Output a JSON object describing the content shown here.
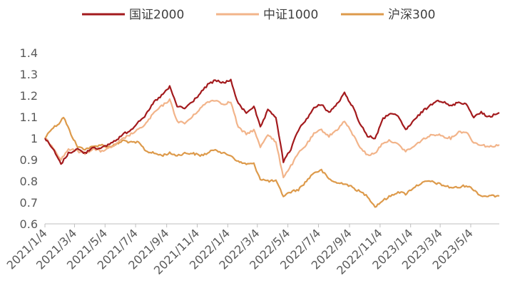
{
  "chart_data": {
    "type": "line",
    "title": "",
    "xlabel": "",
    "ylabel": "",
    "ylim": [
      0.6,
      1.4
    ],
    "yticks": [
      0.6,
      0.7,
      0.8,
      0.9,
      1.0,
      1.1,
      1.2,
      1.3,
      1.4
    ],
    "ytick_labels": [
      "0.6",
      "0.7",
      "0.8",
      "0.9",
      "1",
      "1.1",
      "1.2",
      "1.3",
      "1.4"
    ],
    "xtick_labels": [
      "2021/1/4",
      "2021/3/4",
      "2021/5/4",
      "2021/7/4",
      "2021/9/4",
      "2021/11/4",
      "2022/1/4",
      "2022/3/4",
      "2022/5/4",
      "2022/7/4",
      "2022/9/4",
      "2022/11/4",
      "2023/1/4",
      "2023/3/4",
      "2023/5/4"
    ],
    "x_range": [
      "2021-01-04",
      "2023-06-30"
    ],
    "grid": false,
    "legend_position": "top",
    "series": [
      {
        "name": "国证2000",
        "color": "#a31a1d",
        "points": [
          [
            "2021-01-04",
            1.0
          ],
          [
            "2021-01-20",
            0.95
          ],
          [
            "2021-02-05",
            0.88
          ],
          [
            "2021-02-20",
            0.93
          ],
          [
            "2021-03-10",
            0.95
          ],
          [
            "2021-03-25",
            0.93
          ],
          [
            "2021-04-10",
            0.96
          ],
          [
            "2021-04-25",
            0.95
          ],
          [
            "2021-05-10",
            0.97
          ],
          [
            "2021-05-25",
            0.99
          ],
          [
            "2021-06-10",
            1.02
          ],
          [
            "2021-06-25",
            1.04
          ],
          [
            "2021-07-10",
            1.08
          ],
          [
            "2021-07-25",
            1.11
          ],
          [
            "2021-08-10",
            1.17
          ],
          [
            "2021-08-25",
            1.2
          ],
          [
            "2021-09-10",
            1.24
          ],
          [
            "2021-09-25",
            1.15
          ],
          [
            "2021-10-10",
            1.14
          ],
          [
            "2021-10-25",
            1.17
          ],
          [
            "2021-11-10",
            1.21
          ],
          [
            "2021-11-25",
            1.25
          ],
          [
            "2021-12-10",
            1.27
          ],
          [
            "2021-12-25",
            1.26
          ],
          [
            "2022-01-10",
            1.27
          ],
          [
            "2022-01-25",
            1.16
          ],
          [
            "2022-02-10",
            1.12
          ],
          [
            "2022-02-25",
            1.15
          ],
          [
            "2022-03-10",
            1.05
          ],
          [
            "2022-03-25",
            1.13
          ],
          [
            "2022-04-10",
            1.1
          ],
          [
            "2022-04-25",
            0.89
          ],
          [
            "2022-05-10",
            0.95
          ],
          [
            "2022-05-25",
            1.04
          ],
          [
            "2022-06-10",
            1.09
          ],
          [
            "2022-06-25",
            1.14
          ],
          [
            "2022-07-10",
            1.16
          ],
          [
            "2022-07-25",
            1.12
          ],
          [
            "2022-08-10",
            1.16
          ],
          [
            "2022-08-25",
            1.21
          ],
          [
            "2022-09-10",
            1.15
          ],
          [
            "2022-09-25",
            1.07
          ],
          [
            "2022-10-10",
            1.01
          ],
          [
            "2022-10-25",
            1.0
          ],
          [
            "2022-11-10",
            1.09
          ],
          [
            "2022-11-25",
            1.12
          ],
          [
            "2022-12-10",
            1.1
          ],
          [
            "2022-12-25",
            1.04
          ],
          [
            "2023-01-10",
            1.08
          ],
          [
            "2023-01-25",
            1.12
          ],
          [
            "2023-02-10",
            1.15
          ],
          [
            "2023-02-25",
            1.18
          ],
          [
            "2023-03-10",
            1.17
          ],
          [
            "2023-03-25",
            1.15
          ],
          [
            "2023-04-10",
            1.17
          ],
          [
            "2023-04-25",
            1.16
          ],
          [
            "2023-05-10",
            1.1
          ],
          [
            "2023-05-25",
            1.12
          ],
          [
            "2023-06-10",
            1.1
          ],
          [
            "2023-06-30",
            1.12
          ]
        ]
      },
      {
        "name": "中证1000",
        "color": "#f2b48a",
        "points": [
          [
            "2021-01-04",
            1.0
          ],
          [
            "2021-01-20",
            0.96
          ],
          [
            "2021-02-05",
            0.9
          ],
          [
            "2021-02-20",
            0.95
          ],
          [
            "2021-03-10",
            0.94
          ],
          [
            "2021-03-25",
            0.93
          ],
          [
            "2021-04-10",
            0.95
          ],
          [
            "2021-04-25",
            0.94
          ],
          [
            "2021-05-10",
            0.95
          ],
          [
            "2021-05-25",
            0.97
          ],
          [
            "2021-06-10",
            1.0
          ],
          [
            "2021-06-25",
            1.02
          ],
          [
            "2021-07-10",
            1.04
          ],
          [
            "2021-07-25",
            1.07
          ],
          [
            "2021-08-10",
            1.12
          ],
          [
            "2021-08-25",
            1.15
          ],
          [
            "2021-09-10",
            1.18
          ],
          [
            "2021-09-25",
            1.08
          ],
          [
            "2021-10-10",
            1.07
          ],
          [
            "2021-10-25",
            1.1
          ],
          [
            "2021-11-10",
            1.14
          ],
          [
            "2021-11-25",
            1.17
          ],
          [
            "2021-12-10",
            1.18
          ],
          [
            "2021-12-25",
            1.16
          ],
          [
            "2022-01-10",
            1.17
          ],
          [
            "2022-01-25",
            1.05
          ],
          [
            "2022-02-10",
            1.02
          ],
          [
            "2022-02-25",
            1.04
          ],
          [
            "2022-03-10",
            0.96
          ],
          [
            "2022-03-25",
            1.02
          ],
          [
            "2022-04-10",
            0.98
          ],
          [
            "2022-04-25",
            0.82
          ],
          [
            "2022-05-10",
            0.87
          ],
          [
            "2022-05-25",
            0.93
          ],
          [
            "2022-06-10",
            0.97
          ],
          [
            "2022-06-25",
            1.02
          ],
          [
            "2022-07-10",
            1.04
          ],
          [
            "2022-07-25",
            1.01
          ],
          [
            "2022-08-10",
            1.04
          ],
          [
            "2022-08-25",
            1.08
          ],
          [
            "2022-09-10",
            1.02
          ],
          [
            "2022-09-25",
            0.96
          ],
          [
            "2022-10-10",
            0.92
          ],
          [
            "2022-10-25",
            0.93
          ],
          [
            "2022-11-10",
            0.98
          ],
          [
            "2022-11-25",
            0.99
          ],
          [
            "2022-12-10",
            0.97
          ],
          [
            "2022-12-25",
            0.94
          ],
          [
            "2023-01-10",
            0.96
          ],
          [
            "2023-01-25",
            0.99
          ],
          [
            "2023-02-10",
            1.01
          ],
          [
            "2023-02-25",
            1.02
          ],
          [
            "2023-03-10",
            1.01
          ],
          [
            "2023-03-25",
            1.0
          ],
          [
            "2023-04-10",
            1.03
          ],
          [
            "2023-04-25",
            1.03
          ],
          [
            "2023-05-10",
            0.98
          ],
          [
            "2023-05-25",
            0.97
          ],
          [
            "2023-06-10",
            0.96
          ],
          [
            "2023-06-30",
            0.97
          ]
        ]
      },
      {
        "name": "沪深300",
        "color": "#dd9a4b",
        "points": [
          [
            "2021-01-04",
            1.0
          ],
          [
            "2021-01-15",
            1.04
          ],
          [
            "2021-02-01",
            1.07
          ],
          [
            "2021-02-10",
            1.1
          ],
          [
            "2021-02-25",
            1.02
          ],
          [
            "2021-03-10",
            0.96
          ],
          [
            "2021-03-25",
            0.95
          ],
          [
            "2021-04-10",
            0.96
          ],
          [
            "2021-04-25",
            0.97
          ],
          [
            "2021-05-10",
            0.96
          ],
          [
            "2021-05-25",
            0.97
          ],
          [
            "2021-06-10",
            0.99
          ],
          [
            "2021-06-25",
            0.98
          ],
          [
            "2021-07-10",
            0.98
          ],
          [
            "2021-07-25",
            0.94
          ],
          [
            "2021-08-10",
            0.93
          ],
          [
            "2021-08-25",
            0.92
          ],
          [
            "2021-09-10",
            0.93
          ],
          [
            "2021-09-25",
            0.92
          ],
          [
            "2021-10-10",
            0.93
          ],
          [
            "2021-10-25",
            0.93
          ],
          [
            "2021-11-10",
            0.92
          ],
          [
            "2021-11-25",
            0.93
          ],
          [
            "2021-12-10",
            0.95
          ],
          [
            "2021-12-25",
            0.93
          ],
          [
            "2022-01-10",
            0.92
          ],
          [
            "2022-01-25",
            0.89
          ],
          [
            "2022-02-10",
            0.88
          ],
          [
            "2022-02-25",
            0.88
          ],
          [
            "2022-03-10",
            0.81
          ],
          [
            "2022-03-25",
            0.8
          ],
          [
            "2022-04-10",
            0.8
          ],
          [
            "2022-04-25",
            0.73
          ],
          [
            "2022-05-10",
            0.75
          ],
          [
            "2022-05-25",
            0.76
          ],
          [
            "2022-06-10",
            0.8
          ],
          [
            "2022-06-25",
            0.84
          ],
          [
            "2022-07-10",
            0.85
          ],
          [
            "2022-07-25",
            0.81
          ],
          [
            "2022-08-10",
            0.79
          ],
          [
            "2022-08-25",
            0.79
          ],
          [
            "2022-09-10",
            0.77
          ],
          [
            "2022-09-25",
            0.75
          ],
          [
            "2022-10-10",
            0.73
          ],
          [
            "2022-10-25",
            0.68
          ],
          [
            "2022-11-10",
            0.71
          ],
          [
            "2022-11-25",
            0.73
          ],
          [
            "2022-12-10",
            0.75
          ],
          [
            "2022-12-25",
            0.74
          ],
          [
            "2023-01-10",
            0.77
          ],
          [
            "2023-01-25",
            0.79
          ],
          [
            "2023-02-10",
            0.8
          ],
          [
            "2023-02-25",
            0.79
          ],
          [
            "2023-03-10",
            0.78
          ],
          [
            "2023-03-25",
            0.77
          ],
          [
            "2023-04-10",
            0.77
          ],
          [
            "2023-04-25",
            0.78
          ],
          [
            "2023-05-10",
            0.76
          ],
          [
            "2023-05-25",
            0.73
          ],
          [
            "2023-06-10",
            0.73
          ],
          [
            "2023-06-30",
            0.73
          ]
        ]
      }
    ]
  }
}
